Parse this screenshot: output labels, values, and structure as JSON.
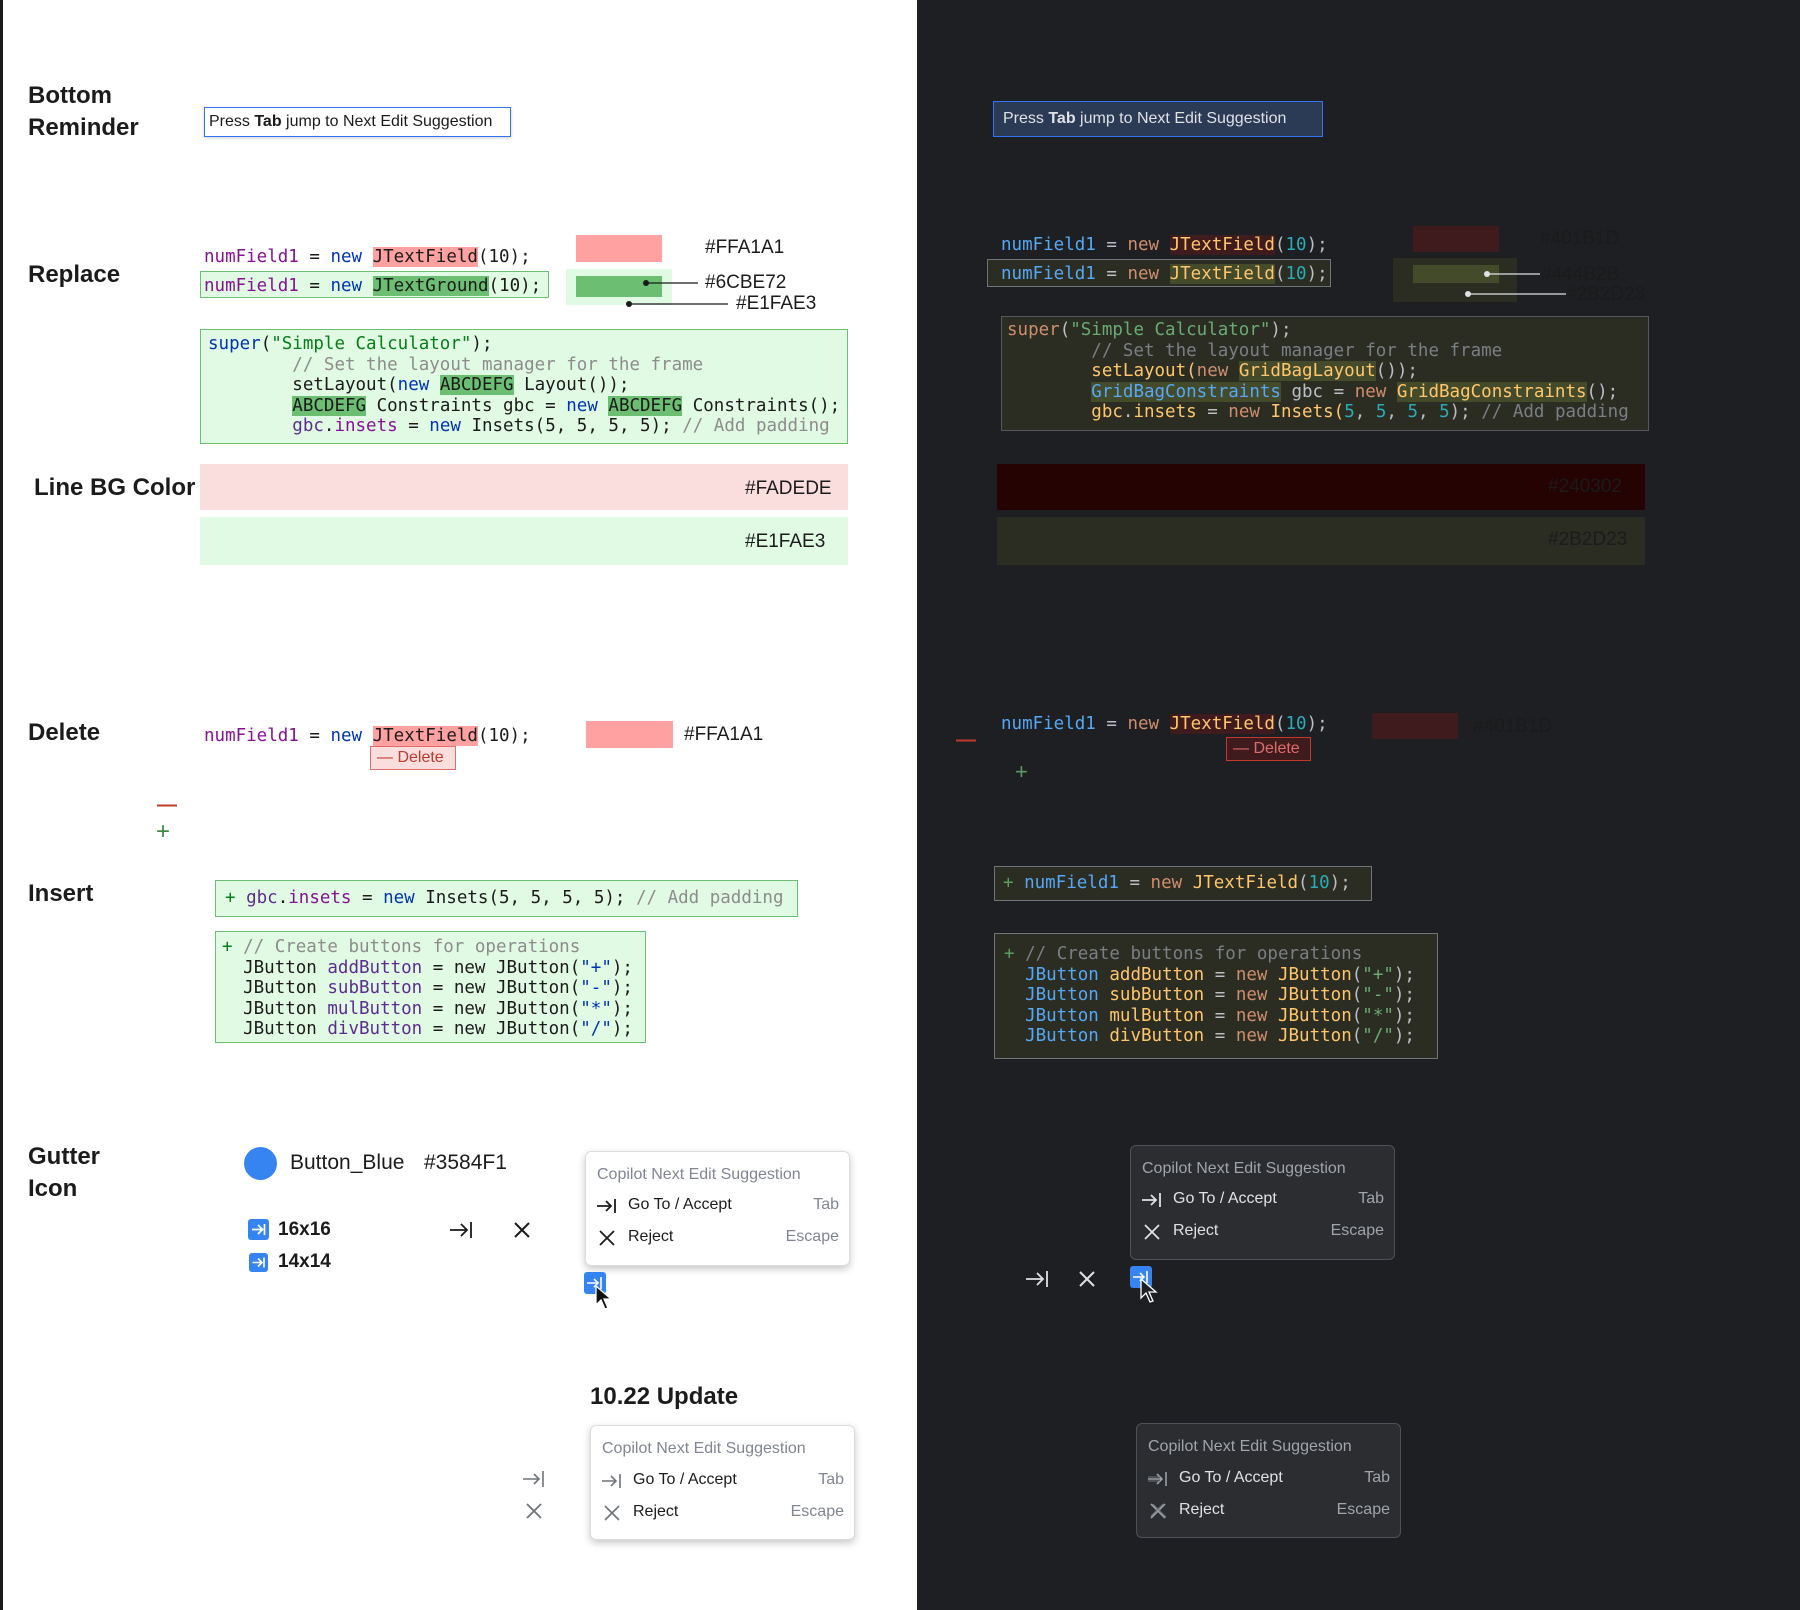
{
  "sections": {
    "bottom_reminder": "Bottom\nReminder",
    "replace": "Replace",
    "line_bg_color": "Line BG Color",
    "delete": "Delete",
    "insert": "Insert",
    "gutter_icon": "Gutter\nIcon",
    "update": "10.22 Update"
  },
  "reminder": {
    "pre": "Press ",
    "key": "Tab",
    "post": " jump to Next Edit Suggestion"
  },
  "code": {
    "var": "numField1",
    "op": " = ",
    "new": "new",
    "sp": " ",
    "cls_old": "JTextField",
    "cls_new": "JTextGround",
    "args": "(10);",
    "args_dark_open": "(",
    "args_dark_num": "10",
    "args_dark_close": ");",
    "super_kw": "super",
    "super_str": "\"Simple Calculator\"",
    "super_end": ");",
    "comment_layout": "// Set the layout manager for the frame",
    "setlayout": "setLayout(",
    "new_sp": "new ",
    "abc": "ABCDEFG",
    "layout_end": " Layout());",
    "constraints": " Constraints gbc = ",
    "constraints_end": " Constraints();",
    "gridbag": "GridBagLayout",
    "gridbag_end": "());",
    "gbc_cls": "GridBagConstraints",
    "gbc_mid": " gbc = ",
    "gbc_end": "();",
    "gbc": "gbc",
    "dot": ".",
    "insets": "insets",
    "insets_new": "Insets(",
    "five": "5",
    "comma": ", ",
    "insets_end": ");",
    "pad_comment": "// Add padding",
    "plus": "+",
    "minus": "—",
    "buttons_comment": "// Create buttons for operations",
    "jbutton": "JButton",
    "buttons": [
      {
        "name": "addButton",
        "sym": "\"+\""
      },
      {
        "name": "subButton",
        "sym": "\"-\""
      },
      {
        "name": "mulButton",
        "sym": "\"*\""
      },
      {
        "name": "divButton",
        "sym": "\"/\""
      }
    ],
    "jbutton_new": " = new JButton(",
    "jbutton_end": ");"
  },
  "colors_light": {
    "red": "#FFA1A1",
    "green": "#6CBE72",
    "green_bg": "#E1FAE3",
    "line_red": "#FADEDE",
    "line_green": "#E1FAE3"
  },
  "colors_dark": {
    "red": "#401B1D",
    "green": "#444B2B",
    "green_bg": "#2B2D23",
    "line_red": "#240302",
    "line_green": "#2B2D23"
  },
  "delete_badge": "— Delete",
  "gutter": {
    "name": "Button_Blue",
    "hex": "#3584F1",
    "size1": "16x16",
    "size2": "14x14"
  },
  "popup": {
    "title": "Copilot Next Edit Suggestion",
    "accept": "Go To / Accept",
    "accept_key": "Tab",
    "reject": "Reject",
    "reject_key": "Escape"
  }
}
